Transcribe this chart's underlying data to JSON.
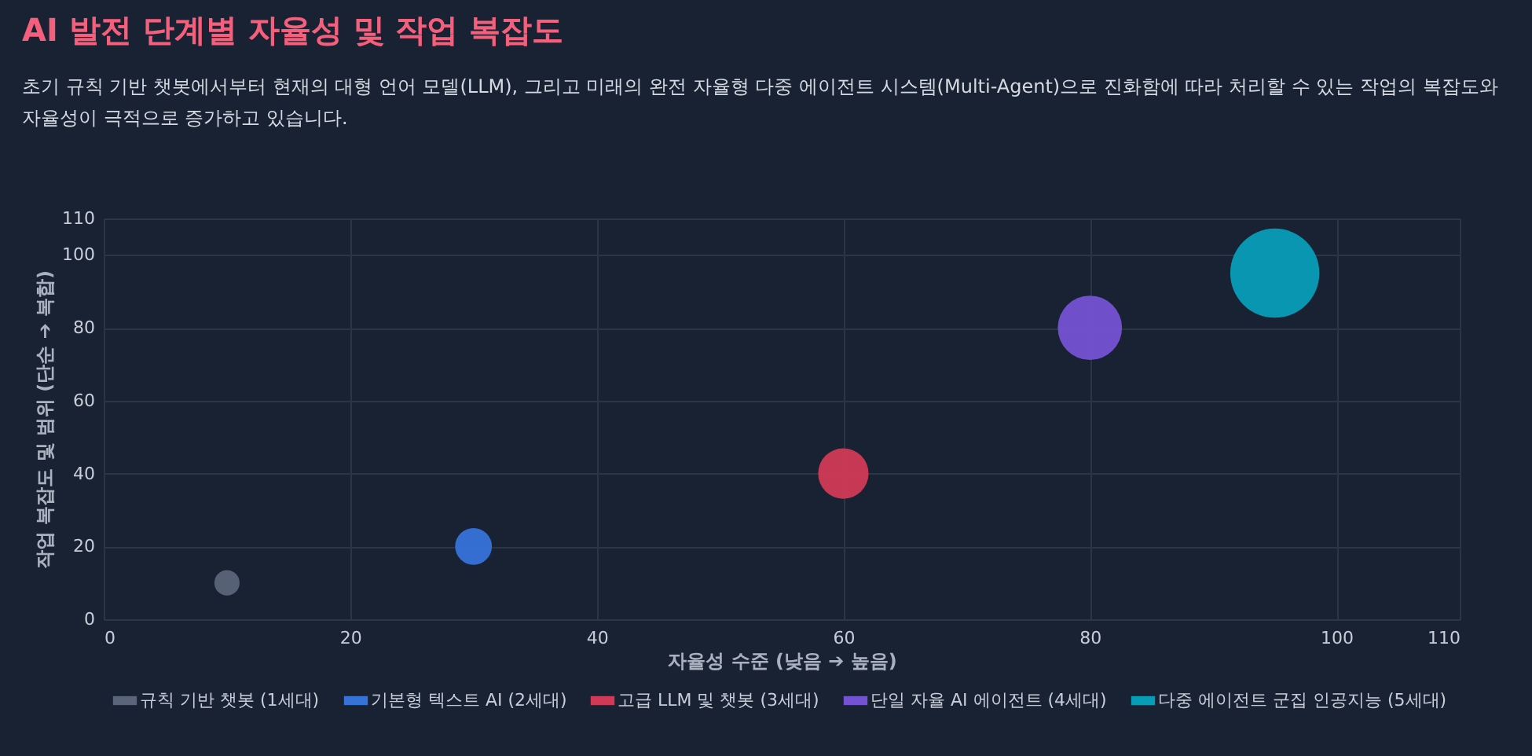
{
  "chart_data": {
    "type": "bubble",
    "title": "AI 발전 단계별 자율성 및 작업 복잡도",
    "subtitle": "초기 규칙 기반 챗봇에서부터 현재의 대형 언어 모델(LLM), 그리고 미래의 완전 자율형 다중 에이전트 시스템(Multi-Agent)으로 진화함에 따라 처리할 수 있는 작업의 복잡도와 자율성이 극적으로 증가하고 있습니다.",
    "xlabel": "자율성 수준 (낮음 ➔ 높음)",
    "ylabel": "작업 복잡도 및 범위 (단순 ➔ 복합)",
    "xlim": [
      0,
      110
    ],
    "xticks": [
      0,
      20,
      40,
      60,
      80,
      100,
      110
    ],
    "ylim": [
      0,
      110
    ],
    "yticks": [
      0,
      20,
      40,
      60,
      80,
      100,
      110
    ],
    "grid": true,
    "legend": "bottom",
    "series": [
      {
        "name": "규칙 기반 챗봇 (1세대)",
        "color": "#5a6579",
        "x": [
          10
        ],
        "values": [
          10
        ],
        "sizes": [
          0.08
        ]
      },
      {
        "name": "기본형 텍스트 AI (2세대)",
        "color": "#3573d9",
        "x": [
          30
        ],
        "values": [
          20
        ],
        "sizes": [
          0.17
        ]
      },
      {
        "name": "고급 LLM 및 챗봇 (3세대)",
        "color": "#d13a57",
        "x": [
          60
        ],
        "values": [
          40
        ],
        "sizes": [
          0.32
        ]
      },
      {
        "name": "단일 자율 AI 에이전트 (4세대)",
        "color": "#7552d4",
        "x": [
          80
        ],
        "values": [
          80
        ],
        "sizes": [
          0.52
        ]
      },
      {
        "name": "다중 에이전트 군집 인공지능 (5세대)",
        "color": "#089db7",
        "x": [
          95
        ],
        "values": [
          95
        ],
        "sizes": [
          1
        ]
      }
    ]
  }
}
